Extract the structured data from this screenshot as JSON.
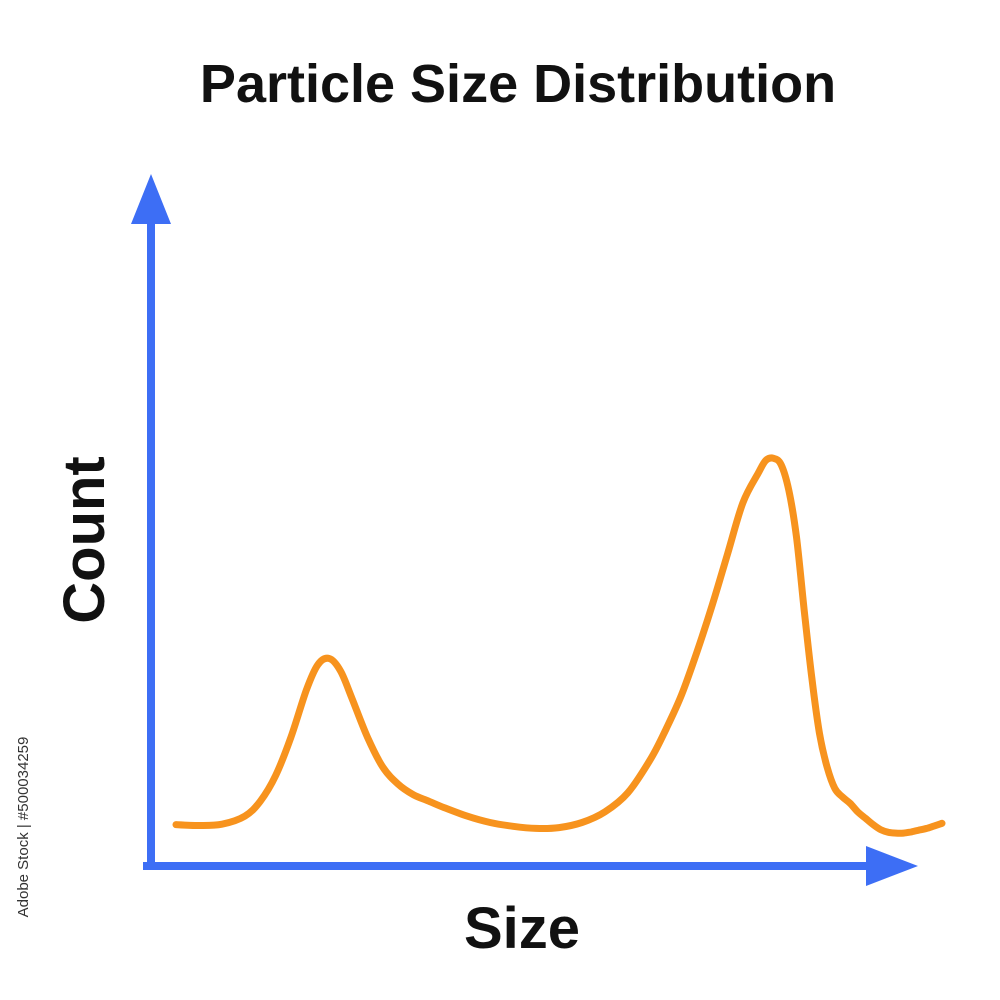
{
  "chart_data": {
    "type": "line",
    "title": "Particle Size Distribution",
    "xlabel": "Size",
    "ylabel": "Count",
    "xlim": [
      0,
      100
    ],
    "ylim": [
      0,
      100
    ],
    "grid": false,
    "legend": "none",
    "ticks": "none",
    "series": [
      {
        "x": [
          0,
          3,
          6,
          9,
          11,
          13,
          15,
          17,
          18.5,
          20,
          21.5,
          23,
          25,
          27,
          29,
          31,
          33,
          35,
          38,
          41,
          44,
          47,
          50,
          53,
          56,
          59,
          62,
          64,
          66,
          68,
          70,
          72,
          74,
          76,
          77,
          78,
          79,
          80,
          81,
          82,
          83,
          84,
          85,
          86,
          87,
          88,
          89,
          90,
          91,
          92,
          93,
          94,
          95,
          96,
          97,
          98,
          99,
          100
        ],
        "y": [
          1.5,
          1.3,
          1.6,
          3.5,
          7,
          13,
          22,
          33,
          39,
          40.5,
          37.5,
          31,
          22,
          15,
          11,
          8.5,
          7,
          5.5,
          3.5,
          2,
          1.1,
          0.6,
          0.8,
          2,
          4.5,
          9,
          17,
          24,
          32,
          42,
          53,
          65,
          77,
          84,
          87,
          87.5,
          86,
          80,
          69,
          52,
          36,
          23,
          15,
          10,
          8,
          6.5,
          4.5,
          3,
          1.5,
          0.3,
          -0.3,
          -0.5,
          -0.5,
          -0.2,
          0.2,
          0.6,
          1.2,
          1.8
        ]
      }
    ],
    "watermark_id": "Adobe Stock | #500034259",
    "colors": {
      "axis": "#3d6ef5",
      "curve": "#f7931e",
      "text": "#111111"
    }
  }
}
